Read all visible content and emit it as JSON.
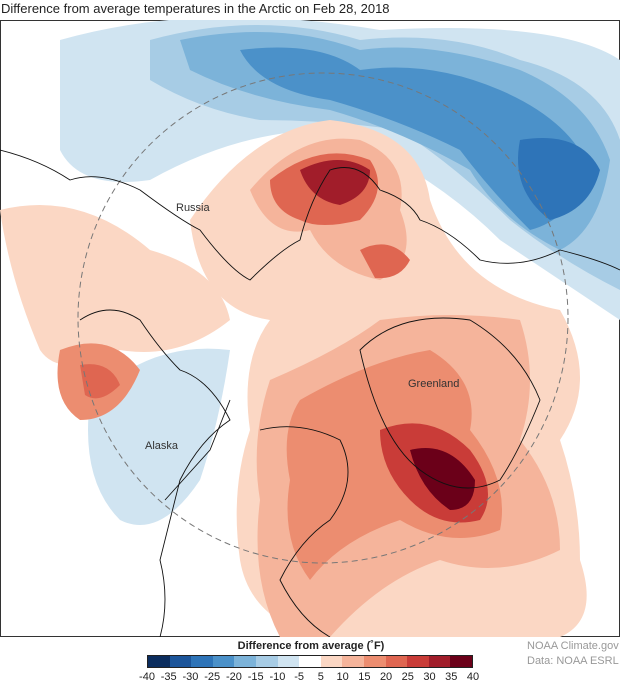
{
  "title": "Difference from average temperatures in the Arctic on Feb 28, 2018",
  "map_labels": {
    "russia": "Russia",
    "greenland": "Greenland",
    "alaska": "Alaska"
  },
  "legend": {
    "title": "Difference from average (˚F)",
    "ticks": [
      "-40",
      "-35",
      "-30",
      "-25",
      "-20",
      "-15",
      "-10",
      "-5",
      "5",
      "10",
      "15",
      "20",
      "25",
      "30",
      "35",
      "40"
    ],
    "colors": [
      "#0b2d5e",
      "#1c559a",
      "#2e74b8",
      "#4b91c9",
      "#7cb3d9",
      "#a7cce5",
      "#d0e4f1",
      "#ffffff",
      "#fbd7c4",
      "#f5b49b",
      "#ec8d70",
      "#df6651",
      "#c93c38",
      "#a11d2a",
      "#6b0019"
    ]
  },
  "credits": {
    "line1": "NOAA Climate.gov",
    "line2": "Data: NOAA ESRL"
  }
}
